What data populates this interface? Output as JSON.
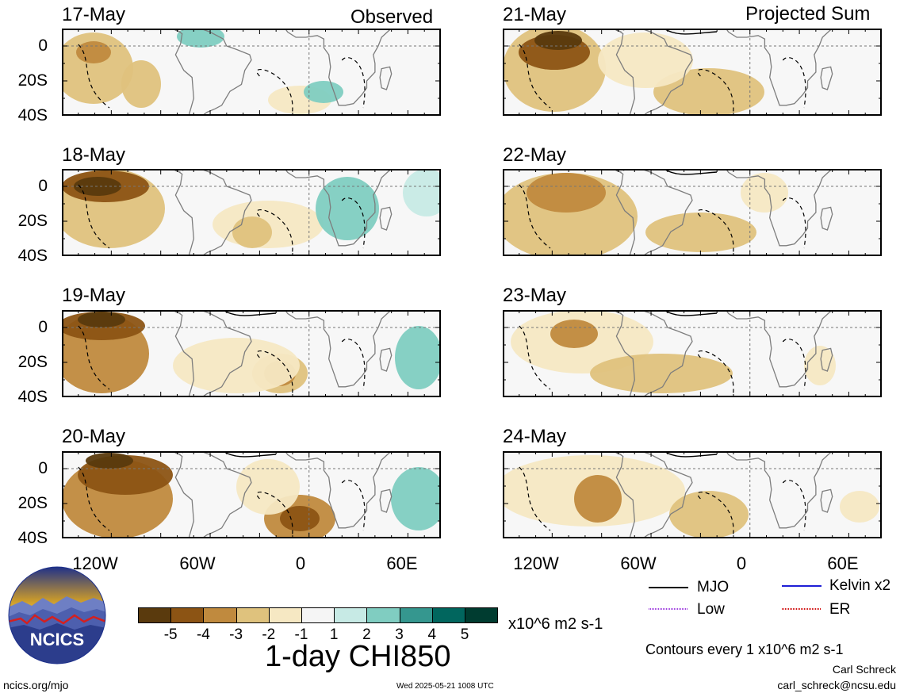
{
  "headers": {
    "left": "Observed",
    "right": "Projected Sum"
  },
  "panels": [
    {
      "date": "17-May",
      "group": "observed"
    },
    {
      "date": "18-May",
      "group": "observed"
    },
    {
      "date": "19-May",
      "group": "observed"
    },
    {
      "date": "20-May",
      "group": "observed"
    },
    {
      "date": "21-May",
      "group": "projected"
    },
    {
      "date": "22-May",
      "group": "projected"
    },
    {
      "date": "23-May",
      "group": "projected"
    },
    {
      "date": "24-May",
      "group": "projected"
    }
  ],
  "lat_labels": [
    "0",
    "20S",
    "40S"
  ],
  "lon_labels": [
    "120W",
    "60W",
    "0",
    "60E"
  ],
  "colorbar": {
    "ticks": [
      "-5",
      "-4",
      "-3",
      "-2",
      "-1",
      "1",
      "2",
      "3",
      "4",
      "5"
    ],
    "colors": [
      "#5a3a0d",
      "#8c5414",
      "#c08a3e",
      "#dfc27d",
      "#f6e8c3",
      "#f5f5f5",
      "#c7eae5",
      "#80cdc1",
      "#35978f",
      "#01665e",
      "#003c30"
    ],
    "units": "x10^6 m2 s-1",
    "title": "1-day CHI850"
  },
  "legend": {
    "mjo": "MJO",
    "kelvin": "Kelvin x2",
    "low": "Low",
    "er": "ER",
    "mjo_color": "#000000",
    "kelvin_color": "#1f1fd6",
    "low_color": "#a040e0",
    "er_color": "#d01010"
  },
  "contour_note": "Contours every 1 x10^6 m2 s-1",
  "author": "Carl Schreck",
  "email": "carl_schreck@ncsu.edu",
  "website": "ncics.org/mjo",
  "timestamp": "Wed 2025-05-21 1008 UTC",
  "logo_text": "NCICS"
}
